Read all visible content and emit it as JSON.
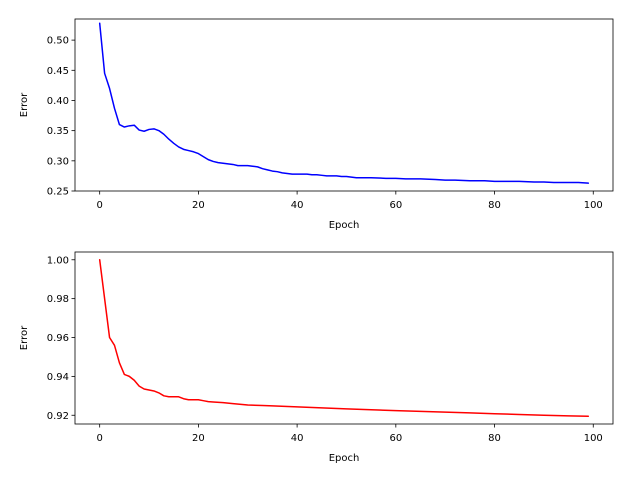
{
  "chart_data": [
    {
      "type": "line",
      "xlabel": "Epoch",
      "ylabel": "Error",
      "xlim": [
        -5,
        104
      ],
      "ylim": [
        0.25,
        0.535
      ],
      "xticks": [
        0,
        20,
        40,
        60,
        80,
        100
      ],
      "yticks": [
        0.25,
        0.3,
        0.35,
        0.4,
        0.45,
        0.5
      ],
      "ytick_labels": [
        "0.25",
        "0.30",
        "0.35",
        "0.40",
        "0.45",
        "0.50"
      ],
      "grid": false,
      "series": [
        {
          "color": "#0000ff",
          "x": [
            0,
            1,
            2,
            3,
            4,
            5,
            6,
            7,
            8,
            9,
            10,
            11,
            12,
            13,
            14,
            15,
            16,
            17,
            18,
            19,
            20,
            21,
            22,
            23,
            24,
            25,
            26,
            27,
            28,
            29,
            30,
            31,
            32,
            33,
            34,
            35,
            36,
            37,
            38,
            39,
            40,
            41,
            42,
            43,
            44,
            45,
            46,
            47,
            48,
            49,
            50,
            52,
            55,
            58,
            60,
            62,
            65,
            68,
            70,
            72,
            75,
            78,
            80,
            82,
            85,
            88,
            90,
            92,
            95,
            97,
            99
          ],
          "y": [
            0.528,
            0.445,
            0.42,
            0.387,
            0.36,
            0.356,
            0.358,
            0.359,
            0.351,
            0.349,
            0.352,
            0.353,
            0.35,
            0.344,
            0.336,
            0.329,
            0.323,
            0.319,
            0.317,
            0.315,
            0.312,
            0.307,
            0.302,
            0.299,
            0.297,
            0.296,
            0.295,
            0.294,
            0.292,
            0.292,
            0.292,
            0.291,
            0.29,
            0.287,
            0.285,
            0.283,
            0.282,
            0.28,
            0.279,
            0.278,
            0.278,
            0.278,
            0.278,
            0.277,
            0.277,
            0.276,
            0.275,
            0.275,
            0.275,
            0.274,
            0.274,
            0.272,
            0.272,
            0.271,
            0.271,
            0.27,
            0.27,
            0.269,
            0.268,
            0.268,
            0.267,
            0.267,
            0.266,
            0.266,
            0.266,
            0.265,
            0.265,
            0.264,
            0.264,
            0.264,
            0.263
          ]
        }
      ]
    },
    {
      "type": "line",
      "xlabel": "Epoch",
      "ylabel": "Error",
      "xlim": [
        -5,
        104
      ],
      "ylim": [
        0.9155,
        1.004
      ],
      "xticks": [
        0,
        20,
        40,
        60,
        80,
        100
      ],
      "yticks": [
        0.92,
        0.94,
        0.96,
        0.98,
        1.0
      ],
      "ytick_labels": [
        "0.92",
        "0.94",
        "0.96",
        "0.98",
        "1.00"
      ],
      "grid": false,
      "series": [
        {
          "color": "#ff0000",
          "x": [
            0,
            1,
            2,
            3,
            4,
            5,
            6,
            7,
            8,
            9,
            10,
            11,
            12,
            13,
            14,
            15,
            16,
            17,
            18,
            19,
            20,
            21,
            22,
            23,
            25,
            27,
            30,
            33,
            35,
            40,
            45,
            50,
            55,
            60,
            65,
            70,
            75,
            80,
            85,
            90,
            95,
            99
          ],
          "y": [
            1.0,
            0.98,
            0.96,
            0.956,
            0.947,
            0.941,
            0.94,
            0.938,
            0.935,
            0.9335,
            0.933,
            0.9325,
            0.9315,
            0.93,
            0.9295,
            0.9295,
            0.9295,
            0.9285,
            0.928,
            0.928,
            0.928,
            0.9275,
            0.927,
            0.9268,
            0.9265,
            0.926,
            0.9253,
            0.925,
            0.9248,
            0.9243,
            0.9238,
            0.9233,
            0.9228,
            0.9224,
            0.922,
            0.9216,
            0.9212,
            0.9208,
            0.9204,
            0.92,
            0.9197,
            0.9195
          ]
        }
      ]
    }
  ]
}
